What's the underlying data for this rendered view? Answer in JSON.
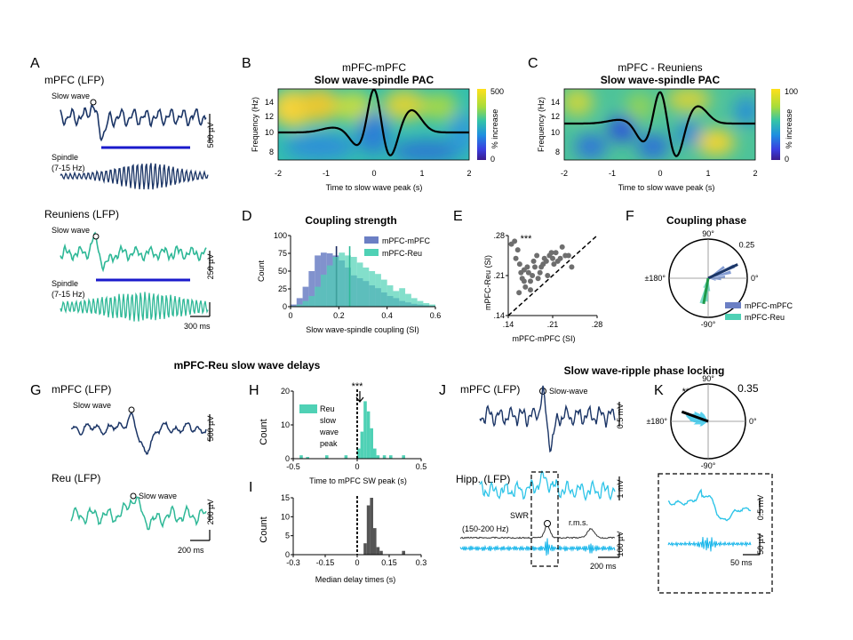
{
  "panels": {
    "A": {
      "letter": "A",
      "mpfc_title": "mPFC (LFP)",
      "reu_title": "Reuniens (LFP)",
      "slow_wave": "Slow wave",
      "spindle_l1": "Spindle",
      "spindle_l2": "(7-15 Hz)",
      "scale_mpfc": "500 µV",
      "scale_reu": "250 µV",
      "scale_time": "300 ms"
    },
    "B": {
      "letter": "B",
      "title1": "mPFC-mPFC",
      "title2": "Slow wave-spindle PAC",
      "ylabel": "Frequency (Hz)",
      "xlabel": "Time to slow wave peak (s)",
      "cbar_label": "% increase",
      "cbar_max": "500",
      "cbar_min": "0"
    },
    "C": {
      "letter": "C",
      "title1": "mPFC - Reuniens",
      "title2": "Slow wave-spindle PAC",
      "ylabel": "Frequency (Hz)",
      "xlabel": "Time to slow wave peak (s)",
      "cbar_label": "% increase",
      "cbar_max": "100",
      "cbar_min": "0"
    },
    "D": {
      "letter": "D",
      "title": "Coupling strength"
    },
    "E": {
      "letter": "E",
      "sig": "***"
    },
    "F": {
      "letter": "F",
      "title": "Coupling phase"
    },
    "G": {
      "letter": "G",
      "section_title": "mPFC-Reu slow wave delays",
      "mpfc_title": "mPFC (LFP)",
      "reu_title": "Reu (LFP)",
      "slow_wave": "Slow wave",
      "scale_mpfc": "500 µV",
      "scale_reu": "200 µV",
      "scale_time": "200 ms"
    },
    "H": {
      "letter": "H",
      "sig": "***"
    },
    "I": {
      "letter": "I"
    },
    "J": {
      "letter": "J",
      "section_title": "Slow wave-ripple phase locking",
      "mpfc_title": "mPFC (LFP)",
      "slow_wave": "Slow-wave",
      "hipp_title": "Hipp. (LFP)",
      "swr": "SWR",
      "band": "(150-200 Hz)",
      "rms": "r.m.s.",
      "scale_mpfc": "0.5 mV",
      "scale_hipp": "1 mV",
      "scale_band": "100 µV",
      "scale_time": "200 ms"
    },
    "K": {
      "letter": "K",
      "sig": "***",
      "scale_top": "0.5 mV",
      "scale_bottom": "50 µV",
      "scale_time": "50 ms"
    }
  },
  "chart_data": [
    {
      "panel": "D",
      "type": "bar",
      "title": "Coupling strength",
      "xlabel": "Slow wave-spindle coupling (SI)",
      "ylabel": "Count",
      "xlim": [
        0,
        0.6
      ],
      "ylim": [
        0,
        100
      ],
      "xticks": [
        "0",
        "0.2",
        "0.4",
        "0.6"
      ],
      "yticks": [
        "0",
        "25",
        "50",
        "75",
        "100"
      ],
      "bin_width": 0.025,
      "bin_starts": [
        0.0,
        0.025,
        0.05,
        0.075,
        0.1,
        0.125,
        0.15,
        0.175,
        0.2,
        0.225,
        0.25,
        0.275,
        0.3,
        0.325,
        0.35,
        0.375,
        0.4,
        0.425,
        0.45,
        0.475,
        0.5,
        0.525,
        0.55,
        0.575
      ],
      "series": [
        {
          "name": "mPFC-mPFC",
          "color": "#6b7fc4",
          "median": 0.19,
          "values": [
            3,
            12,
            28,
            50,
            72,
            76,
            75,
            72,
            65,
            55,
            44,
            40,
            36,
            30,
            26,
            20,
            15,
            12,
            8,
            6,
            4,
            3,
            2,
            1
          ]
        },
        {
          "name": "mPFC-Reu",
          "color": "#4fd1b5",
          "median": 0.245,
          "values": [
            1,
            3,
            8,
            15,
            28,
            45,
            58,
            70,
            76,
            72,
            70,
            62,
            55,
            50,
            46,
            38,
            30,
            22,
            26,
            18,
            12,
            8,
            5,
            3
          ]
        }
      ],
      "legend": "top-right"
    },
    {
      "panel": "E",
      "type": "scatter",
      "xlabel": "mPFC-mPFC (SI)",
      "ylabel": "mPFC-Reu (SI)",
      "xlim": [
        0.14,
        0.28
      ],
      "ylim": [
        0.14,
        0.28
      ],
      "xticks": [
        ".14",
        ".21",
        ".28"
      ],
      "yticks": [
        ".14",
        ".21",
        ".28"
      ],
      "points": [
        [
          0.145,
          0.265
        ],
        [
          0.15,
          0.27
        ],
        [
          0.152,
          0.24
        ],
        [
          0.155,
          0.255
        ],
        [
          0.158,
          0.23
        ],
        [
          0.16,
          0.215
        ],
        [
          0.162,
          0.205
        ],
        [
          0.165,
          0.2
        ],
        [
          0.167,
          0.19
        ],
        [
          0.17,
          0.225
        ],
        [
          0.172,
          0.215
        ],
        [
          0.175,
          0.2
        ],
        [
          0.175,
          0.185
        ],
        [
          0.178,
          0.21
        ],
        [
          0.18,
          0.235
        ],
        [
          0.182,
          0.225
        ],
        [
          0.185,
          0.245
        ],
        [
          0.187,
          0.205
        ],
        [
          0.19,
          0.215
        ],
        [
          0.192,
          0.225
        ],
        [
          0.195,
          0.23
        ],
        [
          0.197,
          0.24
        ],
        [
          0.2,
          0.235
        ],
        [
          0.202,
          0.21
        ],
        [
          0.205,
          0.245
        ],
        [
          0.208,
          0.25
        ],
        [
          0.21,
          0.24
        ],
        [
          0.212,
          0.23
        ],
        [
          0.215,
          0.25
        ],
        [
          0.218,
          0.235
        ],
        [
          0.222,
          0.24
        ],
        [
          0.225,
          0.26
        ],
        [
          0.23,
          0.245
        ],
        [
          0.235,
          0.245
        ],
        [
          0.24,
          0.225
        ],
        [
          0.157,
          0.18
        ],
        [
          0.165,
          0.22
        ]
      ]
    },
    {
      "panel": "F",
      "type": "polar",
      "title": "Coupling phase",
      "r_label": "0.25",
      "angle_labels": [
        "90°",
        "0°",
        "-90°",
        "±180°"
      ],
      "series": [
        {
          "name": "mPFC-mPFC",
          "color": "#5a7bc4",
          "mean_angle_deg": 25,
          "mean_length": 0.25,
          "petals": [
            [
              5,
              0.13
            ],
            [
              15,
              0.18
            ],
            [
              25,
              0.22
            ],
            [
              35,
              0.15
            ],
            [
              -5,
              0.1
            ],
            [
              -15,
              0.06
            ]
          ]
        },
        {
          "name": "mPFC-Reu",
          "color": "#4fd1b5",
          "mean_angle_deg": -100,
          "mean_length": 0.2,
          "petals": [
            [
              -95,
              0.18
            ],
            [
              -105,
              0.2
            ],
            [
              -85,
              0.1
            ],
            [
              -115,
              0.08
            ]
          ]
        }
      ],
      "legend": "bottom-right"
    },
    {
      "panel": "H",
      "type": "bar",
      "xlabel": "Time to mPFC SW peak (s)",
      "ylabel": "Count",
      "xlim": [
        -0.5,
        0.5
      ],
      "ylim": [
        0,
        20
      ],
      "xticks": [
        "-0.5",
        "0",
        "0.5"
      ],
      "yticks": [
        "0",
        "10",
        "20"
      ],
      "bin_width": 0.025,
      "bin_starts": [
        -0.45,
        -0.4,
        -0.25,
        -0.1,
        0.0,
        0.025,
        0.05,
        0.075,
        0.1,
        0.125,
        0.15,
        0.2,
        0.25,
        0.35
      ],
      "series": [
        {
          "name": "Reu slow wave peak",
          "color": "#4fd1b5",
          "values": [
            1,
            0.5,
            1,
            1,
            3,
            8,
            17,
            14,
            9,
            3,
            1,
            1,
            1,
            1
          ]
        }
      ],
      "legend": "top-left"
    },
    {
      "panel": "I",
      "type": "bar",
      "xlabel": "Median delay times (s)",
      "ylabel": "Count",
      "xlim": [
        -0.3,
        0.3
      ],
      "ylim": [
        0,
        15
      ],
      "xticks": [
        "-0.3",
        "-0.15",
        "0",
        "0.15",
        "0.3"
      ],
      "yticks": [
        "0",
        "5",
        "10",
        "15"
      ],
      "bin_width": 0.015,
      "bin_starts": [
        0.03,
        0.045,
        0.06,
        0.075,
        0.09,
        0.105,
        0.21
      ],
      "series": [
        {
          "name": "Median delay",
          "color": "#555555",
          "values": [
            3,
            13,
            15,
            7,
            2,
            1,
            1
          ]
        }
      ]
    },
    {
      "panel": "K",
      "type": "polar",
      "r_label": "0.35",
      "angle_labels": [
        "90°",
        "0°",
        "-90°",
        "±180°"
      ],
      "series": [
        {
          "name": "Ripple phase",
          "color": "#2ec4e8",
          "mean_angle_deg": 160,
          "mean_length": 0.3
        }
      ]
    }
  ],
  "colors": {
    "navy": "#1b3566",
    "teal": "#2fb897",
    "blue": "#1a1acb",
    "cyan": "#16b6e6"
  }
}
